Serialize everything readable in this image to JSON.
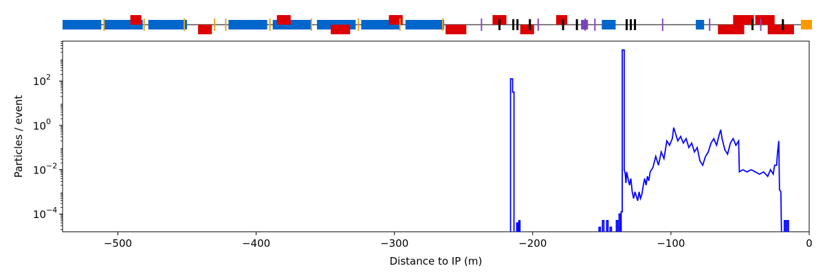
{
  "chart_data": {
    "type": "line",
    "title": "",
    "xlabel": "Distance to IP (m)",
    "ylabel": "Particles / event",
    "xlim": [
      -540,
      0
    ],
    "ylim_log10": [
      -4.8,
      3.8
    ],
    "yscale": "log",
    "grid": false,
    "x_ticks": [
      {
        "value": -500,
        "label": "−500"
      },
      {
        "value": -400,
        "label": "−400"
      },
      {
        "value": -300,
        "label": "−300"
      },
      {
        "value": -200,
        "label": "−200"
      },
      {
        "value": -100,
        "label": "−100"
      },
      {
        "value": 0,
        "label": "0"
      }
    ],
    "y_ticks": [
      {
        "log10": 2,
        "base": "10",
        "exp": "2"
      },
      {
        "log10": 0,
        "base": "10",
        "exp": "0"
      },
      {
        "log10": -2,
        "base": "10",
        "exp": "−2"
      },
      {
        "log10": -4,
        "base": "10",
        "exp": "−4"
      }
    ],
    "series": [
      {
        "color": "#0000ff",
        "points_x_log10y": [
          [
            -216.0,
            -5.0
          ],
          [
            -216.0,
            2.1
          ],
          [
            -214.5,
            2.1
          ],
          [
            -214.5,
            1.5
          ],
          [
            -213.5,
            1.5
          ],
          [
            -213.5,
            -5.0
          ],
          [
            -211.5,
            -5.0
          ],
          [
            -211.5,
            -4.4
          ],
          [
            -210.8,
            -4.4
          ],
          [
            -210.8,
            -5.0
          ],
          [
            -210.0,
            -5.0
          ],
          [
            -210.0,
            -4.3
          ],
          [
            -209.2,
            -4.3
          ],
          [
            -209.2,
            -5.0
          ],
          [
            -152.0,
            -5.0
          ],
          [
            -152.0,
            -4.6
          ],
          [
            -151.0,
            -4.6
          ],
          [
            -151.0,
            -5.0
          ],
          [
            -149.5,
            -5.0
          ],
          [
            -149.5,
            -4.3
          ],
          [
            -148.5,
            -4.3
          ],
          [
            -148.5,
            -5.0
          ],
          [
            -146.5,
            -5.0
          ],
          [
            -146.5,
            -4.3
          ],
          [
            -145.5,
            -4.3
          ],
          [
            -145.5,
            -5.0
          ],
          [
            -144.0,
            -5.0
          ],
          [
            -144.0,
            -4.6
          ],
          [
            -143.0,
            -4.6
          ],
          [
            -143.0,
            -5.0
          ],
          [
            -139.5,
            -5.0
          ],
          [
            -139.5,
            -4.3
          ],
          [
            -138.5,
            -4.3
          ],
          [
            -138.5,
            -5.0
          ],
          [
            -137.5,
            -5.0
          ],
          [
            -137.5,
            -4.0
          ],
          [
            -136.5,
            -4.0
          ],
          [
            -136.5,
            -5.0
          ],
          [
            -136.0,
            -5.0
          ],
          [
            -136.0,
            -3.9
          ],
          [
            -135.2,
            -3.9
          ],
          [
            -135.2,
            3.4
          ],
          [
            -133.8,
            3.4
          ],
          [
            -133.8,
            -2.0
          ],
          [
            -133.0,
            -2.2
          ],
          [
            -132.5,
            -2.6
          ],
          [
            -132.0,
            -2.1
          ],
          [
            -131.0,
            -2.4
          ],
          [
            -130.0,
            -2.7
          ],
          [
            -129.0,
            -2.4
          ],
          [
            -128.0,
            -3.0
          ],
          [
            -127.0,
            -3.3
          ],
          [
            -126.0,
            -3.0
          ],
          [
            -125.0,
            -3.2
          ],
          [
            -124.0,
            -3.4
          ],
          [
            -123.0,
            -3.0
          ],
          [
            -122.0,
            -3.3
          ],
          [
            -121.0,
            -3.1
          ],
          [
            -120.0,
            -2.7
          ],
          [
            -119.0,
            -2.4
          ],
          [
            -118.0,
            -2.7
          ],
          [
            -117.0,
            -2.3
          ],
          [
            -116.0,
            -2.5
          ],
          [
            -115.0,
            -2.1
          ],
          [
            -113.0,
            -1.9
          ],
          [
            -111.0,
            -1.4
          ],
          [
            -109.0,
            -1.8
          ],
          [
            -107.0,
            -1.2
          ],
          [
            -105.0,
            -1.5
          ],
          [
            -103.0,
            -0.7
          ],
          [
            -101.0,
            -0.9
          ],
          [
            -99.0,
            -0.6
          ],
          [
            -98.0,
            -0.1
          ],
          [
            -97.0,
            -0.3
          ],
          [
            -95.0,
            -0.7
          ],
          [
            -93.0,
            -0.5
          ],
          [
            -91.0,
            -0.8
          ],
          [
            -89.0,
            -0.6
          ],
          [
            -87.0,
            -1.0
          ],
          [
            -85.0,
            -0.8
          ],
          [
            -83.0,
            -1.2
          ],
          [
            -81.0,
            -1.0
          ],
          [
            -79.0,
            -1.6
          ],
          [
            -77.0,
            -1.8
          ],
          [
            -75.0,
            -1.4
          ],
          [
            -73.0,
            -1.2
          ],
          [
            -71.0,
            -0.8
          ],
          [
            -69.0,
            -0.6
          ],
          [
            -67.0,
            -0.9
          ],
          [
            -65.0,
            -0.4
          ],
          [
            -64.0,
            -0.2
          ],
          [
            -63.0,
            -0.6
          ],
          [
            -61.0,
            -1.1
          ],
          [
            -59.0,
            -1.3
          ],
          [
            -57.0,
            -0.8
          ],
          [
            -55.0,
            -0.6
          ],
          [
            -53.0,
            -0.9
          ],
          [
            -51.0,
            -0.7
          ],
          [
            -50.5,
            -2.1
          ],
          [
            -48.0,
            -2.0
          ],
          [
            -45.0,
            -2.1
          ],
          [
            -42.0,
            -2.0
          ],
          [
            -39.0,
            -2.1
          ],
          [
            -36.0,
            -2.2
          ],
          [
            -33.0,
            -2.1
          ],
          [
            -30.0,
            -2.3
          ],
          [
            -28.0,
            -2.0
          ],
          [
            -26.0,
            -2.2
          ],
          [
            -25.0,
            -1.8
          ],
          [
            -23.5,
            -1.8
          ],
          [
            -23.0,
            -1.3
          ],
          [
            -22.0,
            -0.7
          ],
          [
            -21.5,
            -2.9
          ],
          [
            -20.5,
            -3.0
          ],
          [
            -20.0,
            -5.0
          ],
          [
            -18.0,
            -5.0
          ],
          [
            -18.0,
            -4.3
          ],
          [
            -17.0,
            -4.3
          ],
          [
            -17.0,
            -5.0
          ],
          [
            -16.0,
            -5.0
          ],
          [
            -16.0,
            -4.3
          ],
          [
            -15.0,
            -4.3
          ],
          [
            -15.0,
            -5.0
          ]
        ]
      }
    ],
    "beamline_elements": [
      {
        "kind": "dipole",
        "x0": -540,
        "x1": -512,
        "color": "#0066cc"
      },
      {
        "kind": "dipole",
        "x0": -510,
        "x1": -482,
        "color": "#0066cc"
      },
      {
        "kind": "dipole",
        "x0": -478,
        "x1": -450,
        "color": "#0066cc"
      },
      {
        "kind": "dipole",
        "x0": -420,
        "x1": -392,
        "color": "#0066cc"
      },
      {
        "kind": "dipole",
        "x0": -388,
        "x1": -360,
        "color": "#0066cc"
      },
      {
        "kind": "dipole",
        "x0": -356,
        "x1": -328,
        "color": "#0066cc"
      },
      {
        "kind": "dipole",
        "x0": -324,
        "x1": -296,
        "color": "#0066cc"
      },
      {
        "kind": "dipole",
        "x0": -292,
        "x1": -264,
        "color": "#0066cc"
      },
      {
        "kind": "dipole",
        "x0": -150,
        "x1": -140,
        "color": "#0066cc"
      },
      {
        "kind": "dipole",
        "x0": -82,
        "x1": -76,
        "color": "#0066cc"
      },
      {
        "kind": "quad-up",
        "x0": -491,
        "x1": -483,
        "color": "#dd0000"
      },
      {
        "kind": "quad-down",
        "x0": -442,
        "x1": -432,
        "color": "#dd0000"
      },
      {
        "kind": "quad-up",
        "x0": -385,
        "x1": -375,
        "color": "#dd0000"
      },
      {
        "kind": "quad-down",
        "x0": -346,
        "x1": -332,
        "color": "#dd0000"
      },
      {
        "kind": "quad-up",
        "x0": -304,
        "x1": -294,
        "color": "#dd0000"
      },
      {
        "kind": "quad-down",
        "x0": -263,
        "x1": -248,
        "color": "#dd0000"
      },
      {
        "kind": "quad-up",
        "x0": -229,
        "x1": -219,
        "color": "#dd0000"
      },
      {
        "kind": "quad-down",
        "x0": -209,
        "x1": -199,
        "color": "#dd0000"
      },
      {
        "kind": "quad-up",
        "x0": -183,
        "x1": -175,
        "color": "#dd0000"
      },
      {
        "kind": "quad-down",
        "x0": -66,
        "x1": -47,
        "color": "#dd0000"
      },
      {
        "kind": "quad-up",
        "x0": -55,
        "x1": -40,
        "color": "#dd0000"
      },
      {
        "kind": "quad-up",
        "x0": -39,
        "x1": -25,
        "color": "#dd0000"
      },
      {
        "kind": "quad-down",
        "x0": -30,
        "x1": -11,
        "color": "#dd0000"
      },
      {
        "kind": "marker",
        "x": -510,
        "color": "#f0a020"
      },
      {
        "kind": "marker",
        "x": -481,
        "color": "#f0a020"
      },
      {
        "kind": "marker",
        "x": -452,
        "color": "#f0a020"
      },
      {
        "kind": "marker",
        "x": -422,
        "color": "#f0a020"
      },
      {
        "kind": "marker",
        "x": -390,
        "color": "#f0a020"
      },
      {
        "kind": "marker",
        "x": -360,
        "color": "#f0a020"
      },
      {
        "kind": "marker",
        "x": -326,
        "color": "#f0a020"
      },
      {
        "kind": "marker",
        "x": -296,
        "color": "#f0a020"
      },
      {
        "kind": "marker",
        "x": -265,
        "color": "#f0a020"
      },
      {
        "kind": "marker",
        "x": -430,
        "color": "#f0a020"
      },
      {
        "kind": "marker",
        "x": -237,
        "color": "#8844cc"
      },
      {
        "kind": "marker",
        "x": -196,
        "color": "#8844cc"
      },
      {
        "kind": "marker",
        "x": -162,
        "color": "#8844cc"
      },
      {
        "kind": "marker",
        "x": -155,
        "color": "#8844cc"
      },
      {
        "kind": "marker",
        "x": -106,
        "color": "#8844cc"
      },
      {
        "kind": "marker",
        "x": -72,
        "color": "#8844cc"
      },
      {
        "kind": "marker",
        "x": -35,
        "color": "#8844cc"
      },
      {
        "kind": "collimator",
        "x": -224,
        "color": "#000000"
      },
      {
        "kind": "collimator",
        "x": -214,
        "color": "#000000"
      },
      {
        "kind": "collimator",
        "x": -211,
        "color": "#000000"
      },
      {
        "kind": "collimator",
        "x": -202,
        "color": "#000000"
      },
      {
        "kind": "collimator",
        "x": -178,
        "color": "#000000"
      },
      {
        "kind": "collimator",
        "x": -168,
        "color": "#000000"
      },
      {
        "kind": "collimator",
        "x": -132,
        "color": "#000000"
      },
      {
        "kind": "collimator",
        "x": -129,
        "color": "#000000"
      },
      {
        "kind": "collimator",
        "x": -126,
        "color": "#000000"
      },
      {
        "kind": "collimator",
        "x": -41,
        "color": "#000000"
      },
      {
        "kind": "collimator",
        "x": -19,
        "color": "#000000"
      },
      {
        "kind": "block",
        "x0": -165,
        "x1": -160,
        "color": "#7744bb"
      },
      {
        "kind": "block",
        "x0": -6,
        "x1": 2,
        "color": "#ff9900"
      }
    ]
  }
}
